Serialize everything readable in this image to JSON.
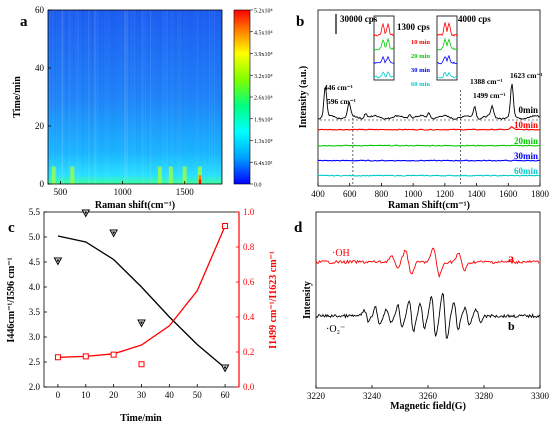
{
  "panels": {
    "a": {
      "label": "a"
    },
    "b": {
      "label": "b"
    },
    "c": {
      "label": "c"
    },
    "d": {
      "label": "d"
    }
  },
  "chart_data": [
    {
      "panel": "a",
      "type": "heatmap",
      "xlabel": "Raman shift(cm⁻¹)",
      "ylabel": "Time/min",
      "xlim": [
        400,
        1800
      ],
      "ylim": [
        0,
        60
      ],
      "xticks": [
        "500",
        "1000",
        "1500"
      ],
      "yticks": [
        "0",
        "20",
        "40",
        "60"
      ],
      "colorbar": {
        "labels": [
          "0.0",
          "6.4x10³",
          "1.3x10⁴",
          "1.9x10⁴",
          "2.6x10⁴",
          "3.2x10⁴",
          "3.9x10⁴",
          "4.5x10⁴",
          "5.2x10⁴"
        ],
        "colors": [
          "#0000ff",
          "#00a0ff",
          "#00ffff",
          "#00ff80",
          "#80ff00",
          "#ffff00",
          "#ff8000",
          "#ff0000"
        ]
      },
      "hot_spots_x": [
        446,
        596,
        1300,
        1388,
        1499,
        1623
      ]
    },
    {
      "panel": "b",
      "type": "line",
      "xlabel": "Raman Shift(cm⁻¹)",
      "ylabel": "Intensity (a.u.)",
      "xlim": [
        400,
        1800
      ],
      "xticks": [
        "400",
        "600",
        "800",
        "1000",
        "1200",
        "1400",
        "1600",
        "1800"
      ],
      "scale_bars": [
        "30000 cps",
        "1300 cps",
        "4000 cps"
      ],
      "peak_labels": [
        {
          "x": 446,
          "text": "446 cm⁻¹"
        },
        {
          "x": 596,
          "text": "596 cm⁻¹"
        },
        {
          "x": 1388,
          "text": "1388 cm⁻¹"
        },
        {
          "x": 1499,
          "text": "1499 cm⁻¹"
        },
        {
          "x": 1623,
          "text": "1623 cm⁻¹"
        }
      ],
      "series": [
        {
          "name": "0min",
          "color": "#000000"
        },
        {
          "name": "10min",
          "color": "#ff0000"
        },
        {
          "name": "20min",
          "color": "#00cc00"
        },
        {
          "name": "30min",
          "color": "#0000ff"
        },
        {
          "name": "60min",
          "color": "#00cccc"
        }
      ],
      "inset_legend": [
        "10 min",
        "20 min",
        "30 min",
        "60 min"
      ]
    },
    {
      "panel": "c",
      "type": "scatter",
      "xlabel": "Time/min",
      "ylabel_left": "I446cm⁻¹/I596 cm⁻¹",
      "ylabel_right": "I1499 cm⁻¹/I1623 cm⁻¹",
      "xlim": [
        -5,
        65
      ],
      "ylim_left": [
        2.0,
        5.5
      ],
      "ylim_right": [
        0.0,
        1.0
      ],
      "xticks": [
        "0",
        "10",
        "20",
        "30",
        "40",
        "50",
        "60"
      ],
      "yticks_left": [
        "2.0",
        "2.5",
        "3.0",
        "3.5",
        "4.0",
        "4.5",
        "5.0",
        "5.5"
      ],
      "yticks_right": [
        "0.0",
        "0.2",
        "0.4",
        "0.6",
        "0.8",
        "1.0"
      ],
      "series": [
        {
          "axis": "left",
          "color": "#000000",
          "marker": "triangle-down",
          "x": [
            0,
            10,
            20,
            30,
            60
          ],
          "values": [
            4.52,
            5.48,
            5.08,
            3.28,
            2.38
          ],
          "fit_x": [
            0,
            10,
            20,
            30,
            40,
            50,
            60
          ],
          "fit": [
            5.02,
            4.9,
            4.55,
            4.0,
            3.4,
            2.85,
            2.38
          ]
        },
        {
          "axis": "right",
          "color": "#ff0000",
          "marker": "square",
          "x": [
            0,
            10,
            20,
            30,
            60
          ],
          "values": [
            0.17,
            0.175,
            0.185,
            0.13,
            0.92
          ],
          "fit_x": [
            0,
            10,
            20,
            30,
            40,
            50,
            60
          ],
          "fit": [
            0.17,
            0.175,
            0.19,
            0.24,
            0.35,
            0.55,
            0.92
          ]
        }
      ]
    },
    {
      "panel": "d",
      "type": "line",
      "xlabel": "Magnetic field(G)",
      "ylabel": "Intensity",
      "xlim": [
        3220,
        3300
      ],
      "xticks": [
        "3220",
        "3240",
        "3260",
        "3280",
        "3300"
      ],
      "series": [
        {
          "name": "a",
          "label": "·OH",
          "color": "#ff0000"
        },
        {
          "name": "b",
          "label": "·O₂⁻",
          "color": "#000000"
        }
      ]
    }
  ]
}
